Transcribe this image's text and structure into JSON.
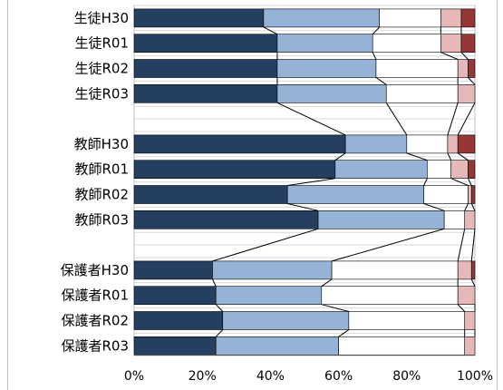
{
  "chart_data": {
    "type": "bar",
    "orientation": "horizontal",
    "stacked": "percent",
    "categories": [
      "生徒H30",
      "生徒R01",
      "生徒R02",
      "生徒R03",
      "教師H30",
      "教師R01",
      "教師R02",
      "教師R03",
      "保護者H30",
      "保護者R01",
      "保護者R02",
      "保護者R03"
    ],
    "groups": [
      [
        0,
        1,
        2,
        3
      ],
      [
        4,
        5,
        6,
        7
      ],
      [
        8,
        9,
        10,
        11
      ]
    ],
    "series": [
      {
        "color": "#243f60",
        "values": [
          38,
          42,
          42,
          42,
          62,
          59,
          45,
          54,
          23,
          24,
          26,
          24
        ]
      },
      {
        "color": "#95b3d7",
        "values": [
          34,
          28,
          29,
          32,
          18,
          27,
          40,
          37,
          35,
          31,
          37,
          36
        ]
      },
      {
        "color": "#ffffff",
        "values": [
          18,
          20,
          24,
          21,
          12,
          7,
          13,
          6,
          37,
          40,
          34,
          37
        ]
      },
      {
        "color": "#e6b8b7",
        "values": [
          6,
          6,
          3,
          5,
          3,
          5,
          1,
          3,
          4,
          5,
          3,
          3
        ]
      },
      {
        "color": "#953735",
        "values": [
          4,
          4,
          2,
          0,
          5,
          2,
          1,
          0,
          1,
          0,
          0,
          0
        ]
      }
    ],
    "x_ticks": [
      "0%",
      "20%",
      "40%",
      "60%",
      "80%",
      "100%"
    ],
    "xlim": [
      0,
      100
    ],
    "grid": "horizontal-lines-in-gaps",
    "connector_lines": true,
    "legend": "none"
  }
}
